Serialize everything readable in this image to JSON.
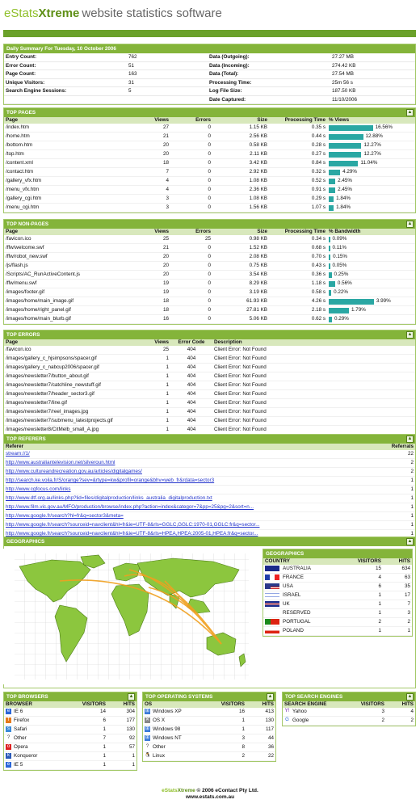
{
  "header": {
    "logo_e": "eStats",
    "logo_x": "Xtreme",
    "tagline": "website statistics software"
  },
  "summary": {
    "title": "Daily Summary For Tuesday, 10 October 2006",
    "left": [
      [
        "Entry Count:",
        "762"
      ],
      [
        "Error Count:",
        "51"
      ],
      [
        "Page Count:",
        "163"
      ],
      [
        "Unique Visitors:",
        "31"
      ],
      [
        "Search Engine Sessions:",
        "5"
      ],
      [
        "",
        ""
      ]
    ],
    "right": [
      [
        "Data (Outgoing):",
        "27.27 MB"
      ],
      [
        "Data (Incoming):",
        "274.42 KB"
      ],
      [
        "Data (Total):",
        "27.54 MB"
      ],
      [
        "Processing Time:",
        "25m 56 s"
      ],
      [
        "Log File Size:",
        "187.50 KB"
      ],
      [
        "Date Captured:",
        "11/10/2006"
      ]
    ]
  },
  "top_pages": {
    "title": "TOP PAGES",
    "cols": [
      "Page",
      "Views",
      "Errors",
      "Size",
      "Processing Time",
      "% Views"
    ],
    "rows": [
      {
        "page": "/index.htm",
        "views": "27",
        "errors": "0",
        "size": "1.15 KB",
        "time": "0.35 s",
        "pct": "16.56%",
        "frac": 0.1656
      },
      {
        "page": "/home.htm",
        "views": "21",
        "errors": "0",
        "size": "2.56 KB",
        "time": "0.44 s",
        "pct": "12.88%",
        "frac": 0.1288
      },
      {
        "page": "/bottom.htm",
        "views": "20",
        "errors": "0",
        "size": "0.58 KB",
        "time": "0.28 s",
        "pct": "12.27%",
        "frac": 0.1227
      },
      {
        "page": "/top.htm",
        "views": "20",
        "errors": "0",
        "size": "2.11 KB",
        "time": "0.27 s",
        "pct": "12.27%",
        "frac": 0.1227
      },
      {
        "page": "/content.xml",
        "views": "18",
        "errors": "0",
        "size": "3.42 KB",
        "time": "0.84 s",
        "pct": "11.04%",
        "frac": 0.1104
      },
      {
        "page": "/contact.htm",
        "views": "7",
        "errors": "0",
        "size": "2.92 KB",
        "time": "0.32 s",
        "pct": "4.29%",
        "frac": 0.0429
      },
      {
        "page": "/gallery_vfx.htm",
        "views": "4",
        "errors": "0",
        "size": "1.08 KB",
        "time": "0.52 s",
        "pct": "2.45%",
        "frac": 0.0245
      },
      {
        "page": "/menu_vfx.htm",
        "views": "4",
        "errors": "0",
        "size": "2.36 KB",
        "time": "0.91 s",
        "pct": "2.45%",
        "frac": 0.0245
      },
      {
        "page": "/gallery_cgi.htm",
        "views": "3",
        "errors": "0",
        "size": "1.08 KB",
        "time": "0.29 s",
        "pct": "1.84%",
        "frac": 0.0184
      },
      {
        "page": "/menu_cgi.htm",
        "views": "3",
        "errors": "0",
        "size": "1.56 KB",
        "time": "1.07 s",
        "pct": "1.84%",
        "frac": 0.0184
      }
    ]
  },
  "top_nonpages": {
    "title": "TOP NON-PAGES",
    "cols": [
      "Page",
      "Views",
      "Errors",
      "Size",
      "Processing Time",
      "% Bandwidth"
    ],
    "rows": [
      {
        "page": "/favicon.ico",
        "views": "25",
        "errors": "25",
        "size": "0.98 KB",
        "time": "0.34 s",
        "pct": "0.09%",
        "frac": 0.0009
      },
      {
        "page": "/ffw/welcome.swf",
        "views": "21",
        "errors": "0",
        "size": "1.52 KB",
        "time": "0.68 s",
        "pct": "0.11%",
        "frac": 0.0011
      },
      {
        "page": "/ffw/robot_new.swf",
        "views": "20",
        "errors": "0",
        "size": "2.08 KB",
        "time": "0.70 s",
        "pct": "0.15%",
        "frac": 0.0015
      },
      {
        "page": "/js/flash.js",
        "views": "20",
        "errors": "0",
        "size": "0.75 KB",
        "time": "0.43 s",
        "pct": "0.05%",
        "frac": 0.0005
      },
      {
        "page": "/Scripts/AC_RunActiveContent.js",
        "views": "20",
        "errors": "0",
        "size": "3.54 KB",
        "time": "0.36 s",
        "pct": "0.25%",
        "frac": 0.0025
      },
      {
        "page": "/ffw/menu.swf",
        "views": "19",
        "errors": "0",
        "size": "8.29 KB",
        "time": "1.18 s",
        "pct": "0.56%",
        "frac": 0.0056
      },
      {
        "page": "/images/footer.gif",
        "views": "19",
        "errors": "0",
        "size": "3.19 KB",
        "time": "0.58 s",
        "pct": "0.22%",
        "frac": 0.0022
      },
      {
        "page": "/images/home/main_image.gif",
        "views": "18",
        "errors": "0",
        "size": "61.93 KB",
        "time": "4.26 s",
        "pct": "3.99%",
        "frac": 0.0399
      },
      {
        "page": "/images/home/right_panel.gif",
        "views": "18",
        "errors": "0",
        "size": "27.81 KB",
        "time": "2.18 s",
        "pct": "1.79%",
        "frac": 0.0179
      },
      {
        "page": "/images/home/main_blurb.gif",
        "views": "16",
        "errors": "0",
        "size": "5.06 KB",
        "time": "0.62 s",
        "pct": "0.29%",
        "frac": 0.0029
      }
    ]
  },
  "top_errors": {
    "title": "TOP ERRORS",
    "cols": [
      "Page",
      "Views",
      "Error Code",
      "Description"
    ],
    "rows": [
      [
        "/favicon.ico",
        "25",
        "404",
        "Client Error: Not Found"
      ],
      [
        "/images/gallery_c_hjsimpsons/spacer.gif",
        "1",
        "404",
        "Client Error: Not Found"
      ],
      [
        "/images/gallery_c_nabcup2006/spacer.gif",
        "1",
        "404",
        "Client Error: Not Found"
      ],
      [
        "/images/newsletter7/button_about.gif",
        "1",
        "404",
        "Client Error: Not Found"
      ],
      [
        "/images/newsletter7/catchline_newstuff.gif",
        "1",
        "404",
        "Client Error: Not Found"
      ],
      [
        "/images/newsletter7/header_sector3.gif",
        "1",
        "404",
        "Client Error: Not Found"
      ],
      [
        "/images/newsletter7/line.gif",
        "1",
        "404",
        "Client Error: Not Found"
      ],
      [
        "/images/newsletter7/reel_images.jpg",
        "1",
        "404",
        "Client Error: Not Found"
      ],
      [
        "/images/newsletter7/submenu_latestprojects.gif",
        "1",
        "404",
        "Client Error: Not Found"
      ],
      [
        "/images/newsletter8/CitMelb_small_A.jpg",
        "1",
        "404",
        "Client Error: Not Found"
      ]
    ]
  },
  "top_referers": {
    "title": "TOP REFERERS",
    "cols": [
      "Referer",
      "Referrals"
    ],
    "rows": [
      [
        "stream://1/",
        "22"
      ],
      [
        "http://www.australiantelevision.net/silveroun.html",
        "2"
      ],
      [
        "http://www.cultureandrecreation.gov.au/articles/digitalgames/",
        "2"
      ],
      [
        "http://search.ke.voila.fr/S/orange?sev=&rtype=kw&profil=orange&bhv=web_fr&rdata=sector3",
        "1"
      ],
      [
        "http://www.cgfocus.com/links",
        "1"
      ],
      [
        "http://www.dtf.org.au/links.php?lid=files/digitalproduction/links_australia_digitalproduction.txt",
        "1"
      ],
      [
        "http://www.film.vic.gov.au/MFO/production/browse/index.php?action=index&categor=7&pp=25&pg=2&sort=n...",
        "1"
      ],
      [
        "http://www.google.fr/search?hl=fr&q=sector3&meta=",
        "1"
      ],
      [
        "http://www.google.fr/search?sourceid=navclient&hl=fr&ie=UTF-8&rls=GGLC,GGLC:1970-01,GGLC:fr&q=sector...",
        "1"
      ],
      [
        "http://www.google.fr/search?sourceid=navclient&hl=fr&ie=UTF-8&rls=HPEA,HPEA:2005-01,HPEA:fr&q=sector...",
        "1"
      ]
    ]
  },
  "geographics": {
    "title": "GEOGRAPHICS",
    "panel_title": "GEOGRAPHICS",
    "cols": [
      "COUNTRY",
      "VISITORS",
      "HITS"
    ],
    "rows": [
      {
        "country": "AUSTRALIA",
        "visitors": "15",
        "hits": "634",
        "flag": "au"
      },
      {
        "country": "FRANCE",
        "visitors": "4",
        "hits": "63",
        "flag": "fr"
      },
      {
        "country": "USA",
        "visitors": "6",
        "hits": "35",
        "flag": "us"
      },
      {
        "country": "ISRAEL",
        "visitors": "1",
        "hits": "17",
        "flag": "il"
      },
      {
        "country": "UK",
        "visitors": "1",
        "hits": "7",
        "flag": "uk"
      },
      {
        "country": "RESERVED",
        "visitors": "1",
        "hits": "3",
        "flag": ""
      },
      {
        "country": "PORTUGAL",
        "visitors": "2",
        "hits": "2",
        "flag": "pt"
      },
      {
        "country": "POLAND",
        "visitors": "1",
        "hits": "1",
        "flag": "pl"
      }
    ]
  },
  "browsers": {
    "title": "TOP BROWSERS",
    "cols": [
      "BROWSER",
      "VISITORS",
      "HITS"
    ],
    "rows": [
      [
        "IE 6",
        "14",
        "304",
        "ie"
      ],
      [
        "Firefox",
        "6",
        "177",
        "ff"
      ],
      [
        "Safari",
        "1",
        "130",
        "safari"
      ],
      [
        "Other",
        "7",
        "92",
        "other"
      ],
      [
        "Opera",
        "1",
        "57",
        "opera"
      ],
      [
        "Konqueror",
        "1",
        "1",
        "konq"
      ],
      [
        "IE 5",
        "1",
        "1",
        "ie"
      ]
    ]
  },
  "os": {
    "title": "TOP OPERATING SYSTEMS",
    "cols": [
      "OS",
      "VISITORS",
      "HITS"
    ],
    "rows": [
      [
        "Windows XP",
        "16",
        "413",
        "win"
      ],
      [
        "OS X",
        "1",
        "130",
        "mac"
      ],
      [
        "Windows 98",
        "1",
        "117",
        "win"
      ],
      [
        "Windows NT",
        "3",
        "44",
        "win"
      ],
      [
        "Other",
        "8",
        "36",
        "other"
      ],
      [
        "Linux",
        "2",
        "22",
        "linux"
      ]
    ]
  },
  "search": {
    "title": "TOP SEARCH ENGINES",
    "cols": [
      "SEARCH ENGINE",
      "VISITORS",
      "HITS"
    ],
    "rows": [
      [
        "Yahoo",
        "3",
        "4",
        "yahoo"
      ],
      [
        "Google",
        "2",
        "2",
        "google"
      ]
    ]
  },
  "footer": {
    "brand_e": "eStats",
    "brand_x": "Xtreme",
    "copy": " © 2006 eContact Pty Ltd.",
    "url": "www.estats.com.au"
  },
  "colors": {
    "accent": "#84b43a",
    "bar": "#2aa7a3",
    "land": "#8cc63e",
    "arc": "#f0a020"
  }
}
